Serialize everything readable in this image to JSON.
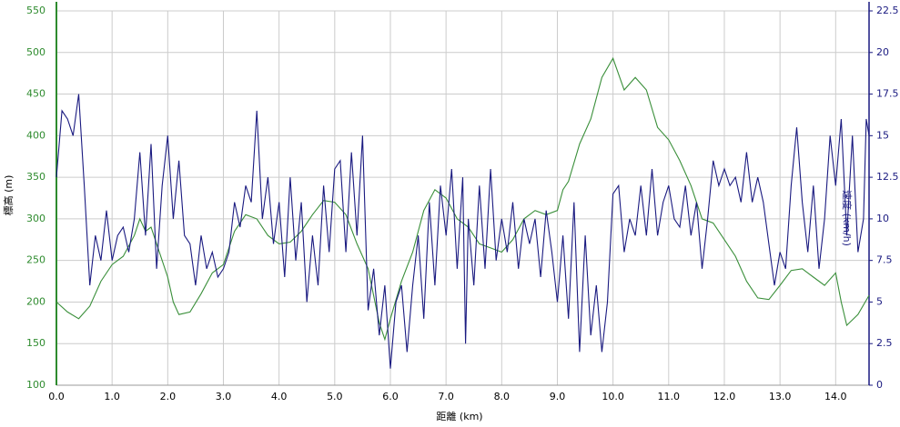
{
  "chart_data": {
    "type": "line",
    "xlabel": "距離 (km)",
    "ylabel": "標高 (m)",
    "y2label": "速度 (km/h)",
    "xlim": [
      0,
      14.6
    ],
    "xticks": [
      {
        "value": 0,
        "label": "0.0"
      },
      {
        "value": 1,
        "label": "1.0"
      },
      {
        "value": 2,
        "label": "2.0"
      },
      {
        "value": 3,
        "label": "3.0"
      },
      {
        "value": 4,
        "label": "4.0"
      },
      {
        "value": 5,
        "label": "5.0"
      },
      {
        "value": 6,
        "label": "6.0"
      },
      {
        "value": 7,
        "label": "7.0"
      },
      {
        "value": 8,
        "label": "8.0"
      },
      {
        "value": 9,
        "label": "9.0"
      },
      {
        "value": 10,
        "label": "10.0"
      },
      {
        "value": 11,
        "label": "11.0"
      },
      {
        "value": 12,
        "label": "12.0"
      },
      {
        "value": 13,
        "label": "13.0"
      },
      {
        "value": 14,
        "label": "14.0"
      }
    ],
    "ylim": [
      100,
      550
    ],
    "yticks": [
      100,
      150,
      200,
      250,
      300,
      350,
      400,
      450,
      500,
      550
    ],
    "y2lim": [
      0,
      22.5
    ],
    "y2ticks": [
      0,
      2.5,
      5,
      7.5,
      10,
      12.5,
      15,
      17.5,
      20,
      22.5
    ],
    "grid": true,
    "ycolor": "#2e8b2e",
    "y2color": "#1a1a80",
    "series": [
      {
        "color": "#3a8f3a",
        "x": [
          0,
          0.2,
          0.4,
          0.6,
          0.8,
          1.0,
          1.2,
          1.4,
          1.5,
          1.6,
          1.7,
          1.8,
          2.0,
          2.1,
          2.2,
          2.4,
          2.6,
          2.8,
          3.0,
          3.2,
          3.4,
          3.6,
          3.8,
          4.0,
          4.2,
          4.4,
          4.6,
          4.8,
          5.0,
          5.2,
          5.4,
          5.6,
          5.8,
          5.9,
          6.0,
          6.2,
          6.4,
          6.6,
          6.8,
          7.0,
          7.2,
          7.4,
          7.6,
          7.8,
          8.0,
          8.2,
          8.4,
          8.6,
          8.8,
          9.0,
          9.1,
          9.2,
          9.4,
          9.6,
          9.8,
          10.0,
          10.2,
          10.4,
          10.6,
          10.8,
          11.0,
          11.2,
          11.4,
          11.6,
          11.8,
          12.0,
          12.2,
          12.4,
          12.6,
          12.8,
          13.0,
          13.2,
          13.4,
          13.6,
          13.8,
          14.0,
          14.1,
          14.2,
          14.4,
          14.6
        ],
        "values": [
          200,
          188,
          180,
          195,
          225,
          245,
          255,
          280,
          300,
          285,
          290,
          270,
          230,
          200,
          185,
          188,
          210,
          235,
          245,
          285,
          305,
          300,
          280,
          270,
          272,
          285,
          305,
          322,
          320,
          305,
          270,
          240,
          175,
          155,
          180,
          225,
          260,
          310,
          335,
          325,
          300,
          290,
          270,
          265,
          260,
          275,
          300,
          310,
          305,
          310,
          335,
          345,
          390,
          420,
          470,
          493,
          455,
          470,
          455,
          410,
          395,
          370,
          340,
          300,
          295,
          275,
          255,
          225,
          205,
          203,
          220,
          238,
          240,
          230,
          220,
          235,
          200,
          172,
          185,
          208
        ]
      },
      {
        "color": "#1a1a80",
        "axis": "y2",
        "x": [
          0,
          0.1,
          0.2,
          0.3,
          0.4,
          0.5,
          0.6,
          0.7,
          0.8,
          0.9,
          1.0,
          1.1,
          1.2,
          1.3,
          1.4,
          1.5,
          1.6,
          1.7,
          1.8,
          1.9,
          2.0,
          2.1,
          2.2,
          2.3,
          2.4,
          2.5,
          2.6,
          2.7,
          2.8,
          2.9,
          3.0,
          3.1,
          3.2,
          3.3,
          3.4,
          3.5,
          3.6,
          3.7,
          3.8,
          3.9,
          4.0,
          4.1,
          4.2,
          4.3,
          4.4,
          4.5,
          4.6,
          4.7,
          4.8,
          4.9,
          5.0,
          5.1,
          5.2,
          5.3,
          5.4,
          5.5,
          5.6,
          5.7,
          5.8,
          5.9,
          6.0,
          6.1,
          6.2,
          6.3,
          6.4,
          6.5,
          6.6,
          6.7,
          6.8,
          6.9,
          7.0,
          7.1,
          7.2,
          7.3,
          7.35,
          7.4,
          7.5,
          7.6,
          7.7,
          7.8,
          7.9,
          8.0,
          8.1,
          8.2,
          8.3,
          8.4,
          8.5,
          8.6,
          8.7,
          8.8,
          8.9,
          9.0,
          9.1,
          9.2,
          9.3,
          9.4,
          9.5,
          9.6,
          9.7,
          9.8,
          9.9,
          10.0,
          10.1,
          10.2,
          10.3,
          10.4,
          10.5,
          10.6,
          10.7,
          10.8,
          10.9,
          11.0,
          11.1,
          11.2,
          11.3,
          11.4,
          11.5,
          11.6,
          11.7,
          11.8,
          11.9,
          12.0,
          12.1,
          12.2,
          12.3,
          12.4,
          12.5,
          12.6,
          12.7,
          12.8,
          12.9,
          13.0,
          13.1,
          13.2,
          13.3,
          13.4,
          13.5,
          13.6,
          13.7,
          13.8,
          13.9,
          14.0,
          14.1,
          14.2,
          14.3,
          14.4,
          14.5,
          14.55,
          14.6
        ],
        "values": [
          12.5,
          16.5,
          16,
          15,
          17.5,
          12,
          6,
          9,
          7.5,
          10.5,
          7.5,
          9,
          9.5,
          8,
          10,
          14,
          9,
          14.5,
          7,
          12,
          15,
          10,
          13.5,
          9,
          8.5,
          6,
          9,
          7,
          8,
          6.5,
          7,
          8,
          11,
          9.5,
          12,
          11,
          16.5,
          10,
          12.5,
          8.5,
          11,
          6.5,
          12.5,
          7.5,
          11,
          5,
          9,
          6,
          12,
          8,
          13,
          13.5,
          8,
          14,
          9,
          15,
          4.5,
          7,
          3,
          6,
          1,
          5,
          6,
          2,
          6,
          9,
          4,
          11,
          6,
          12,
          9,
          13,
          7,
          12.5,
          2.5,
          10,
          6,
          12,
          7,
          13,
          7.5,
          10,
          8,
          11,
          7,
          10,
          8.5,
          10,
          6.5,
          10.5,
          8,
          5,
          9,
          4,
          11,
          2,
          9,
          3,
          6,
          2,
          5,
          11.5,
          12,
          8,
          10,
          9,
          12,
          9,
          13,
          9,
          11,
          12,
          10,
          9.5,
          12,
          9,
          11,
          7,
          10,
          13.5,
          12,
          13,
          12,
          12.5,
          11,
          14,
          11,
          12.5,
          11,
          8.5,
          6,
          8,
          7,
          12,
          15.5,
          11,
          8,
          12,
          7,
          10,
          15,
          12,
          16,
          9,
          15,
          8,
          10,
          16,
          15
        ]
      }
    ]
  }
}
